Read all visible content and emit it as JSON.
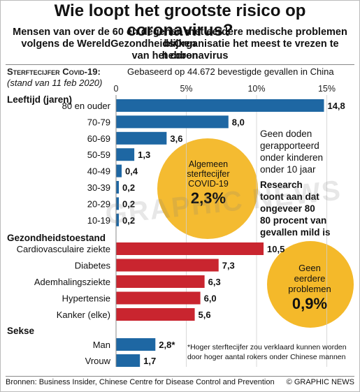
{
  "title": "Wie loopt het grootste risico op coronavirus?",
  "subtitle_lines": [
    "Mensen van over de 60 en degenen met eerdere medische problemen blijken",
    "volgens de WereldGezondheidsOrganisatie het meest te vrezen te hebben",
    "van het coronavirus"
  ],
  "header": {
    "label": "Sterftecijfer Covid-19:",
    "text": "Gebaseerd op 44.672 bevestigde gevallen in China",
    "date": "(stand van 11 feb 2020)"
  },
  "notes": {
    "no_deaths": [
      "Geen doden",
      "gerapporteerd",
      "onder kinderen",
      "onder 10 jaar"
    ],
    "research": [
      "Research",
      "toont aan dat",
      "ongeveer 80",
      "80 procent van",
      "gevallen mild is"
    ],
    "overall": {
      "lines": [
        "Algemeen",
        "sterftecijfer",
        "COVID-19"
      ],
      "value": "2,3%"
    },
    "no_prior": {
      "lines": [
        "Geen",
        "eerdere",
        "problemen"
      ],
      "value": "0,9%"
    },
    "footnote": [
      "*Hoger sterftecijfer zou verklaard kunnen worden",
      "door hoger aantal rokers onder Chinese mannen"
    ]
  },
  "watermark": "GRAPHIC NEWS",
  "footer": {
    "source": "Bronnen: Business Insider, Chinese Centre for Disease Control and Prevention",
    "credit": "© GRAPHIC NEWS"
  },
  "colors": {
    "age": "#1e67a3",
    "health": "#c9252f",
    "sex": "#1e67a3",
    "yellow": "#f3b51f"
  },
  "chart_data": {
    "type": "bar",
    "orientation": "horizontal",
    "unit": "%",
    "x_ticks": [
      "0",
      "5%",
      "10%",
      "15%"
    ],
    "xlim": [
      0,
      15
    ],
    "groups": [
      {
        "name": "Leeftijd (jaren)",
        "color_key": "age",
        "categories": [
          "80 en ouder",
          "70-79",
          "60-69",
          "50-59",
          "40-49",
          "30-39",
          "20-29",
          "10-19"
        ],
        "values": [
          14.8,
          8.0,
          3.6,
          1.3,
          0.4,
          0.2,
          0.2,
          0.2
        ],
        "labels": [
          "14,8",
          "8,0",
          "3,6",
          "1,3",
          "0,4",
          "0,2",
          "0,2",
          "0,2"
        ]
      },
      {
        "name": "Gezondheidstoestand",
        "color_key": "health",
        "categories": [
          "Cardiovasculaire ziekte",
          "Diabetes",
          "Ademhalingsziekte",
          "Hypertensie",
          "Kanker (elke)"
        ],
        "values": [
          10.5,
          7.3,
          6.3,
          6.0,
          5.6
        ],
        "labels": [
          "10,5",
          "7,3",
          "6,3",
          "6,0",
          "5,6"
        ]
      },
      {
        "name": "Sekse",
        "color_key": "sex",
        "categories": [
          "Man",
          "Vrouw"
        ],
        "values": [
          2.8,
          1.7
        ],
        "labels": [
          "2,8*",
          "1,7"
        ]
      }
    ]
  }
}
